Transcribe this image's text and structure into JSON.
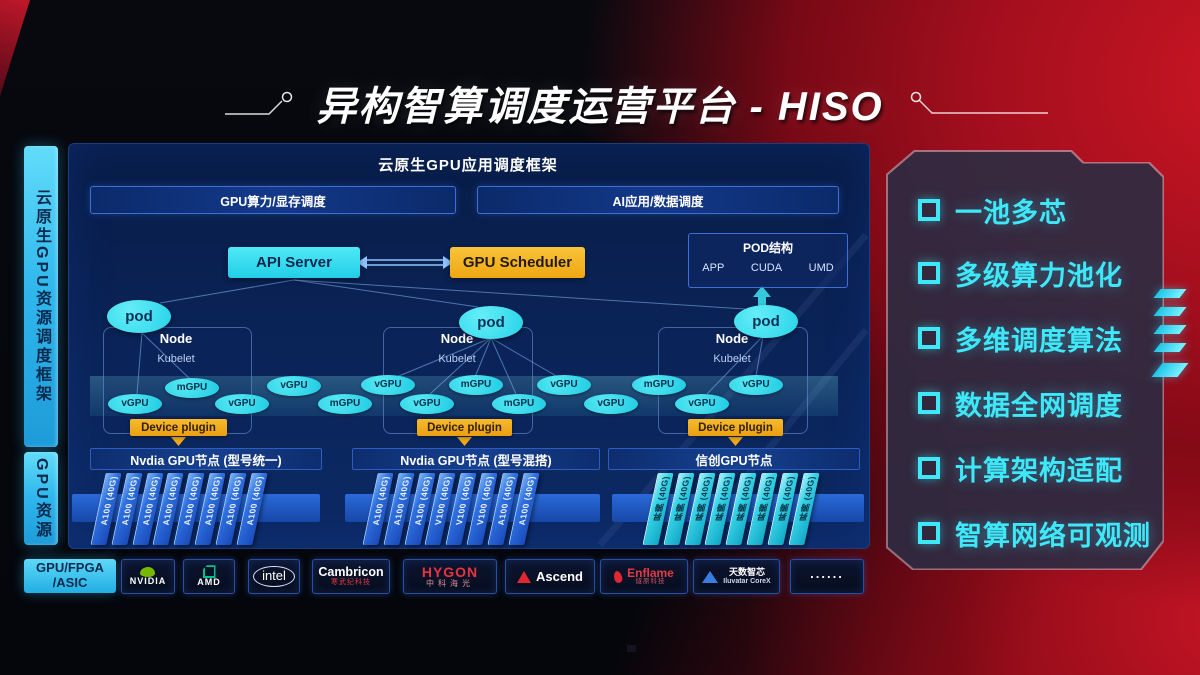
{
  "title": "异构智算调度运营平台 - HISO",
  "sidebar": {
    "framework_label": "云原生GPU资源调度框架",
    "resource_label": "GPU资源",
    "hardware_top": "GPU/FPGA",
    "hardware_bottom": "/ASIC"
  },
  "scheduling_framework": {
    "title": "云原生GPU应用调度框架",
    "left_bar": "GPU算力/显存调度",
    "right_bar": "AI应用/数据调度"
  },
  "control_plane": {
    "api_server": "API Server",
    "gpu_scheduler": "GPU Scheduler"
  },
  "pod_structure": {
    "title": "POD结构",
    "items": [
      "APP",
      "CUDA",
      "UMD"
    ]
  },
  "nodes": [
    {
      "pod": "pod",
      "title": "Node",
      "kubelet": "Kubelet",
      "device_plugin": "Device plugin"
    },
    {
      "pod": "pod",
      "title": "Node",
      "kubelet": "Kubelet",
      "device_plugin": "Device plugin"
    },
    {
      "pod": "pod",
      "title": "Node",
      "kubelet": "Kubelet",
      "device_plugin": "Device plugin"
    }
  ],
  "gpu_ellipses": [
    "mGPU",
    "vGPU",
    "vGPU",
    "mGPU",
    "vGPU",
    "mGPU",
    "vGPU",
    "vGPU",
    "vGPU",
    "mGPU",
    "vGPU",
    "mGPU",
    "vGPU",
    "vGPU"
  ],
  "gpu_node_groups": [
    {
      "header": "Nvdia GPU节点 (型号统一)",
      "style": "blue",
      "cards": [
        "A100 (40G)",
        "A100 (40G)",
        "A100 (40G)",
        "A100 (40G)",
        "A100 (40G)",
        "A100 (40G)",
        "A100 (40G)",
        "A100 (40G)"
      ]
    },
    {
      "header": "Nvdia GPU节点 (型号混搭)",
      "style": "blue",
      "cards": [
        "A100 (40G)",
        "A100 (40G)",
        "A100 (40G)",
        "V100 (40G)",
        "V100 (40G)",
        "V100 (40G)",
        "A100 (40G)",
        "A100 (40G)"
      ]
    },
    {
      "header": "信创GPU节点",
      "style": "cyan",
      "cards": [
        "昇腾 (40G)",
        "昇腾 (40G)",
        "昇腾 (40G)",
        "昇腾 (40G)",
        "昇腾 (40G)",
        "昇腾 (40G)",
        "昇腾 (40G)",
        "昇腾 (40G)"
      ]
    }
  ],
  "vendors": [
    {
      "name": "NVIDIA",
      "label": "NVIDIA"
    },
    {
      "name": "AMD",
      "label": "AMD"
    },
    {
      "name": "Intel",
      "label": "intel"
    },
    {
      "name": "Cambricon",
      "label": "Cambricon",
      "sub": "寒武纪科技"
    },
    {
      "name": "Hygon",
      "label": "HYGON",
      "sub": "中科海光"
    },
    {
      "name": "Ascend",
      "label": "Ascend"
    },
    {
      "name": "Enflame",
      "label": "Enflame",
      "sub": "燧原科技"
    },
    {
      "name": "Iluvatar",
      "label": "天数智芯",
      "sub": "Iluvatar CoreX"
    },
    {
      "name": "More",
      "label": "......"
    }
  ],
  "features": [
    "一池多芯",
    "多级算力池化",
    "多维调度算法",
    "数据全网调度",
    "计算架构适配",
    "智算网络可观测"
  ],
  "colors": {
    "accent_cyan": "#35dff2",
    "accent_orange": "#f5b019",
    "panel_blue": "#0b2559",
    "background_red": "#a60f1e",
    "card_blue": "#2e6fe0",
    "feature_text": "#3ee8f8"
  }
}
